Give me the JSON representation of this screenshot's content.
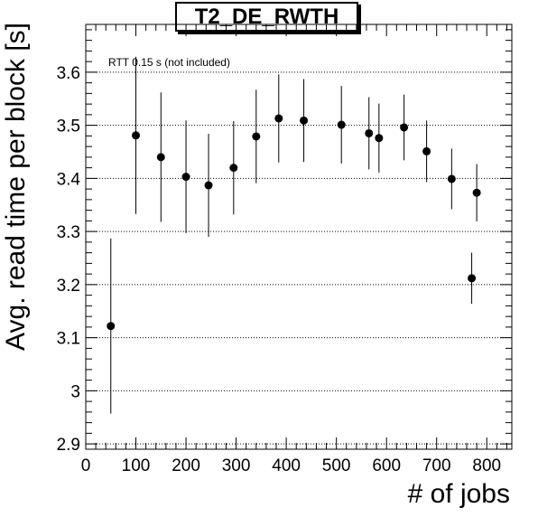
{
  "chart_data": {
    "type": "scatter",
    "title": "T2_DE_RWTH",
    "annotation": "RTT 0.15 s (not included)",
    "xlabel": "# of jobs",
    "ylabel": "Avg. read time per block [s]",
    "xlim": [
      0,
      850
    ],
    "ylim": [
      2.89,
      3.69
    ],
    "x_ticks": [
      0,
      100,
      200,
      300,
      400,
      500,
      600,
      700,
      800
    ],
    "y_ticks": [
      2.9,
      3,
      3.1,
      3.2,
      3.3,
      3.4,
      3.5,
      3.6
    ],
    "x_tick_labels": [
      "0",
      "100",
      "200",
      "300",
      "400",
      "500",
      "600",
      "700",
      "800"
    ],
    "y_tick_labels": [
      "2.9",
      "3",
      "3.1",
      "3.2",
      "3.3",
      "3.4",
      "3.5",
      "3.6"
    ],
    "grid": "horizontal-dotted",
    "points": [
      {
        "x": 50,
        "y": 3.122,
        "err": 0.165
      },
      {
        "x": 100,
        "y": 3.481,
        "err": 0.148
      },
      {
        "x": 150,
        "y": 3.44,
        "err": 0.122
      },
      {
        "x": 200,
        "y": 3.403,
        "err": 0.106
      },
      {
        "x": 245,
        "y": 3.387,
        "err": 0.097
      },
      {
        "x": 295,
        "y": 3.42,
        "err": 0.088
      },
      {
        "x": 340,
        "y": 3.479,
        "err": 0.088
      },
      {
        "x": 385,
        "y": 3.513,
        "err": 0.083
      },
      {
        "x": 435,
        "y": 3.509,
        "err": 0.078
      },
      {
        "x": 510,
        "y": 3.501,
        "err": 0.073
      },
      {
        "x": 565,
        "y": 3.485,
        "err": 0.068
      },
      {
        "x": 585,
        "y": 3.476,
        "err": 0.065
      },
      {
        "x": 635,
        "y": 3.496,
        "err": 0.062
      },
      {
        "x": 680,
        "y": 3.451,
        "err": 0.058
      },
      {
        "x": 730,
        "y": 3.399,
        "err": 0.057
      },
      {
        "x": 770,
        "y": 3.212,
        "err": 0.048
      },
      {
        "x": 780,
        "y": 3.373,
        "err": 0.054
      }
    ]
  }
}
